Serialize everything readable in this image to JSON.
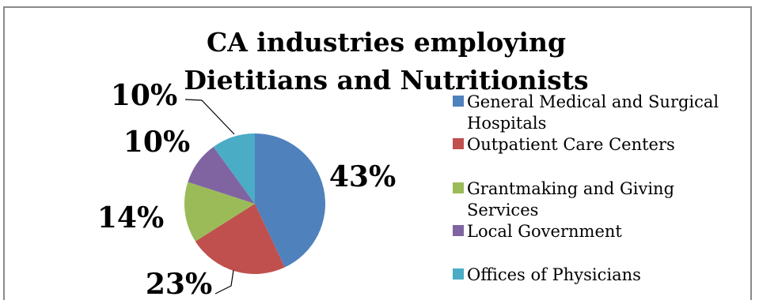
{
  "chart_data": {
    "type": "pie",
    "title_lines": [
      "CA industries employing",
      "Dietitians and Nutritionists"
    ],
    "slices": [
      {
        "label": "General Medical and Surgical Hospitals",
        "value": 43,
        "display": "43%",
        "color": "#4f81bd"
      },
      {
        "label": "Outpatient Care Centers",
        "value": 23,
        "display": "23%",
        "color": "#c0504d"
      },
      {
        "label": "Grantmaking and Giving Services",
        "value": 14,
        "display": "14%",
        "color": "#9bbb59"
      },
      {
        "label": "Local Government",
        "value": 10,
        "display": "10%",
        "color": "#8064a2"
      },
      {
        "label": "Offices of Physicians",
        "value": 10,
        "display": "10%",
        "color": "#4bacc6"
      }
    ],
    "legend": {
      "position": "right",
      "entries": [
        {
          "lines": [
            "General Medical and Surgical",
            "Hospitals"
          ],
          "color": "#4f81bd"
        },
        {
          "lines": [
            "Outpatient Care Centers"
          ],
          "color": "#c0504d"
        },
        {
          "lines": [
            "Grantmaking and Giving",
            "Services"
          ],
          "color": "#9bbb59"
        },
        {
          "lines": [
            "Local Government"
          ],
          "color": "#8064a2"
        },
        {
          "lines": [
            "Offices of Physicians"
          ],
          "color": "#4bacc6"
        }
      ]
    }
  }
}
